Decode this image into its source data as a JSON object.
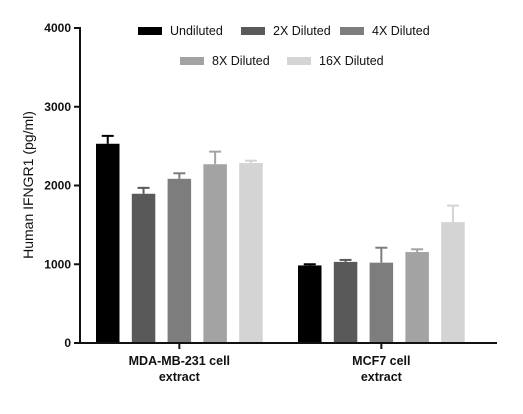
{
  "chart_data": {
    "type": "bar",
    "title": "",
    "xlabel": "",
    "ylabel": "Human IFNGR1 (pg/ml)",
    "ylim": [
      0,
      4000
    ],
    "yticks": [
      0,
      1000,
      2000,
      3000,
      4000
    ],
    "grid": false,
    "legend_position": "top",
    "categories": [
      [
        "MDA-MB-231 cell",
        "extract"
      ],
      [
        "MCF7 cell",
        "extract"
      ]
    ],
    "series": [
      {
        "name": "Undiluted",
        "color": "#000000",
        "values": [
          2530,
          985
        ],
        "errors": [
          100,
          15
        ]
      },
      {
        "name": "2X Diluted",
        "color": "#595959",
        "values": [
          1895,
          1030
        ],
        "errors": [
          75,
          25
        ]
      },
      {
        "name": "4X Diluted",
        "color": "#7d7d7d",
        "values": [
          2085,
          1020
        ],
        "errors": [
          70,
          190
        ]
      },
      {
        "name": "8X Diluted",
        "color": "#a3a3a3",
        "values": [
          2270,
          1155
        ],
        "errors": [
          160,
          35
        ]
      },
      {
        "name": "16X Diluted",
        "color": "#d4d4d4",
        "values": [
          2285,
          1535
        ],
        "errors": [
          30,
          210
        ]
      }
    ]
  }
}
